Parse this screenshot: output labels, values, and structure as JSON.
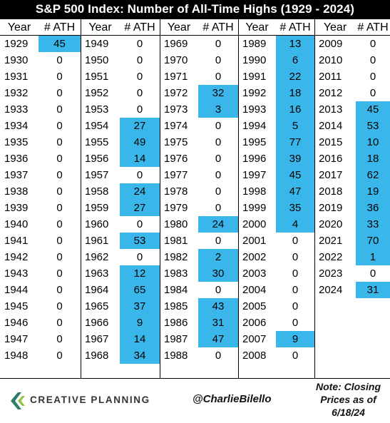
{
  "title": "S&P 500 Index: Number of All-Time Highs (1929 - 2024)",
  "header": {
    "year": "Year",
    "ath": "# ATH"
  },
  "colors": {
    "highlight": "#3ab7ea",
    "title_bg": "#000000",
    "title_fg": "#ffffff"
  },
  "chart_data": {
    "type": "table",
    "columns": [
      {
        "rows": [
          [
            "1929",
            "45",
            true
          ],
          [
            "1930",
            "0",
            false
          ],
          [
            "1931",
            "0",
            false
          ],
          [
            "1932",
            "0",
            false
          ],
          [
            "1933",
            "0",
            false
          ],
          [
            "1934",
            "0",
            false
          ],
          [
            "1935",
            "0",
            false
          ],
          [
            "1936",
            "0",
            false
          ],
          [
            "1937",
            "0",
            false
          ],
          [
            "1938",
            "0",
            false
          ],
          [
            "1939",
            "0",
            false
          ],
          [
            "1940",
            "0",
            false
          ],
          [
            "1941",
            "0",
            false
          ],
          [
            "1942",
            "0",
            false
          ],
          [
            "1943",
            "0",
            false
          ],
          [
            "1944",
            "0",
            false
          ],
          [
            "1945",
            "0",
            false
          ],
          [
            "1946",
            "0",
            false
          ],
          [
            "1947",
            "0",
            false
          ],
          [
            "1948",
            "0",
            false
          ]
        ]
      },
      {
        "rows": [
          [
            "1949",
            "0",
            false
          ],
          [
            "1950",
            "0",
            false
          ],
          [
            "1951",
            "0",
            false
          ],
          [
            "1952",
            "0",
            false
          ],
          [
            "1953",
            "0",
            false
          ],
          [
            "1954",
            "27",
            true
          ],
          [
            "1955",
            "49",
            true
          ],
          [
            "1956",
            "14",
            true
          ],
          [
            "1957",
            "0",
            false
          ],
          [
            "1958",
            "24",
            true
          ],
          [
            "1959",
            "27",
            true
          ],
          [
            "1960",
            "0",
            false
          ],
          [
            "1961",
            "53",
            true
          ],
          [
            "1962",
            "0",
            false
          ],
          [
            "1963",
            "12",
            true
          ],
          [
            "1964",
            "65",
            true
          ],
          [
            "1965",
            "37",
            true
          ],
          [
            "1966",
            "9",
            true
          ],
          [
            "1967",
            "14",
            true
          ],
          [
            "1968",
            "34",
            true
          ]
        ]
      },
      {
        "rows": [
          [
            "1969",
            "0",
            false
          ],
          [
            "1970",
            "0",
            false
          ],
          [
            "1971",
            "0",
            false
          ],
          [
            "1972",
            "32",
            true
          ],
          [
            "1973",
            "3",
            true
          ],
          [
            "1974",
            "0",
            false
          ],
          [
            "1975",
            "0",
            false
          ],
          [
            "1976",
            "0",
            false
          ],
          [
            "1977",
            "0",
            false
          ],
          [
            "1978",
            "0",
            false
          ],
          [
            "1979",
            "0",
            false
          ],
          [
            "1980",
            "24",
            true
          ],
          [
            "1981",
            "0",
            false
          ],
          [
            "1982",
            "2",
            true
          ],
          [
            "1983",
            "30",
            true
          ],
          [
            "1984",
            "0",
            false
          ],
          [
            "1985",
            "43",
            true
          ],
          [
            "1986",
            "31",
            true
          ],
          [
            "1987",
            "47",
            true
          ],
          [
            "1988",
            "0",
            false
          ]
        ]
      },
      {
        "rows": [
          [
            "1989",
            "13",
            true
          ],
          [
            "1990",
            "6",
            true
          ],
          [
            "1991",
            "22",
            true
          ],
          [
            "1992",
            "18",
            true
          ],
          [
            "1993",
            "16",
            true
          ],
          [
            "1994",
            "5",
            true
          ],
          [
            "1995",
            "77",
            true
          ],
          [
            "1996",
            "39",
            true
          ],
          [
            "1997",
            "45",
            true
          ],
          [
            "1998",
            "47",
            true
          ],
          [
            "1999",
            "35",
            true
          ],
          [
            "2000",
            "4",
            true
          ],
          [
            "2001",
            "0",
            false
          ],
          [
            "2002",
            "0",
            false
          ],
          [
            "2003",
            "0",
            false
          ],
          [
            "2004",
            "0",
            false
          ],
          [
            "2005",
            "0",
            false
          ],
          [
            "2006",
            "0",
            false
          ],
          [
            "2007",
            "9",
            true
          ],
          [
            "2008",
            "0",
            false
          ]
        ]
      },
      {
        "rows": [
          [
            "2009",
            "0",
            false
          ],
          [
            "2010",
            "0",
            false
          ],
          [
            "2011",
            "0",
            false
          ],
          [
            "2012",
            "0",
            false
          ],
          [
            "2013",
            "45",
            true
          ],
          [
            "2014",
            "53",
            true
          ],
          [
            "2015",
            "10",
            true
          ],
          [
            "2016",
            "18",
            true
          ],
          [
            "2017",
            "62",
            true
          ],
          [
            "2018",
            "19",
            true
          ],
          [
            "2019",
            "36",
            true
          ],
          [
            "2020",
            "33",
            true
          ],
          [
            "2021",
            "70",
            true
          ],
          [
            "2022",
            "1",
            true
          ],
          [
            "2023",
            "0",
            false
          ],
          [
            "2024",
            "31",
            true
          ]
        ]
      }
    ]
  },
  "footer": {
    "logo_text": "CREATIVE PLANNING",
    "handle": "@CharlieBilello",
    "note_lines": [
      "Note: Closing",
      "Prices as of",
      "6/18/24"
    ]
  }
}
